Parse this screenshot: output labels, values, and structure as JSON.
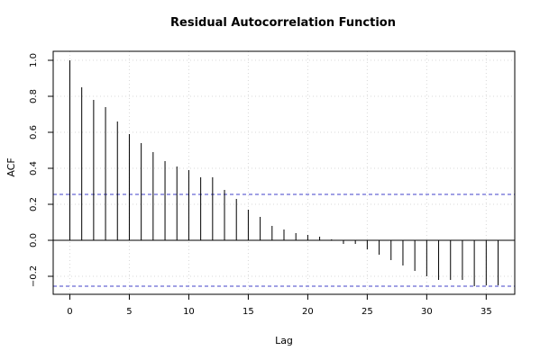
{
  "chart_data": {
    "type": "bar",
    "title": "Residual Autocorrelation Function",
    "xlabel": "Lag",
    "ylabel": "ACF",
    "xlim": [
      -1.4,
      37.4
    ],
    "ylim": [
      -0.3,
      1.05
    ],
    "x_ticks": [
      0,
      5,
      10,
      15,
      20,
      25,
      30,
      35
    ],
    "y_ticks": [
      -0.2,
      0.0,
      0.2,
      0.4,
      0.6,
      0.8,
      1.0
    ],
    "x_tick_labels": [
      "0",
      "5",
      "10",
      "15",
      "20",
      "25",
      "30",
      "35"
    ],
    "y_tick_labels": [
      "−0.2",
      "0.0",
      "0.2",
      "0.4",
      "0.6",
      "0.8",
      "1.0"
    ],
    "grid": true,
    "confidence_bounds": [
      0.255,
      -0.255
    ],
    "confidence_color": "#4040c8",
    "x": [
      0,
      1,
      2,
      3,
      4,
      5,
      6,
      7,
      8,
      9,
      10,
      11,
      12,
      13,
      14,
      15,
      16,
      17,
      18,
      19,
      20,
      21,
      22,
      23,
      24,
      25,
      26,
      27,
      28,
      29,
      30,
      31,
      32,
      33,
      34,
      35,
      36
    ],
    "values": [
      1.0,
      0.85,
      0.78,
      0.74,
      0.66,
      0.59,
      0.54,
      0.49,
      0.44,
      0.41,
      0.39,
      0.35,
      0.35,
      0.28,
      0.23,
      0.17,
      0.13,
      0.08,
      0.06,
      0.04,
      0.03,
      0.02,
      0.005,
      -0.02,
      -0.02,
      -0.05,
      -0.08,
      -0.11,
      -0.14,
      -0.17,
      -0.2,
      -0.22,
      -0.22,
      -0.22,
      -0.255,
      -0.25,
      -0.25
    ]
  }
}
